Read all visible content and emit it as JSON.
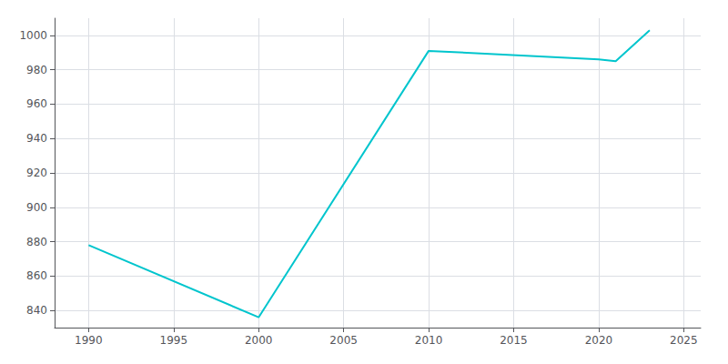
{
  "chart_data": {
    "type": "line",
    "x": [
      1990,
      2000,
      2010,
      2020,
      2021,
      2022,
      2023
    ],
    "values": [
      878,
      836,
      991,
      986,
      985,
      994,
      1003
    ],
    "color": "#00C5CD",
    "xlim": [
      1988,
      2026
    ],
    "ylim": [
      830,
      1010
    ],
    "xticks": [
      1990,
      1995,
      2000,
      2005,
      2010,
      2015,
      2020,
      2025
    ],
    "yticks": [
      840,
      860,
      880,
      900,
      920,
      940,
      960,
      980,
      1000
    ],
    "grid": true
  }
}
